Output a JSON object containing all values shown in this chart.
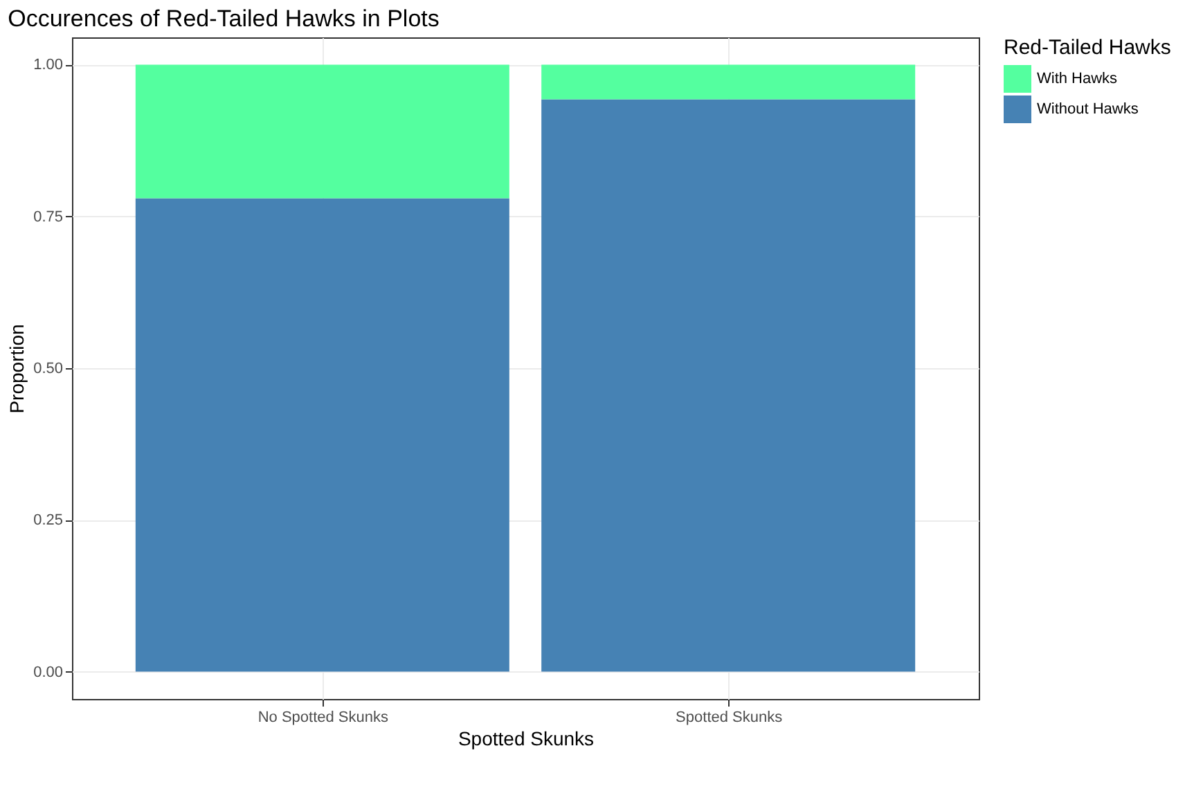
{
  "chart_data": {
    "type": "bar",
    "title": "Occurences of Red-Tailed Hawks in Plots",
    "xlabel": "Spotted Skunks",
    "ylabel": "Proportion",
    "legend_title": "Red-Tailed Hawks",
    "categories": [
      "No Spotted Skunks",
      "Spotted Skunks"
    ],
    "series": [
      {
        "name": "Without Hawks",
        "color": "#4682b4",
        "values": [
          0.78,
          0.943
        ]
      },
      {
        "name": "With Hawks",
        "color": "#54ff9f",
        "values": [
          0.22,
          0.057
        ]
      }
    ],
    "stacked": true,
    "ylim": [
      -0.045,
      1.045
    ],
    "yticks": [
      {
        "value": 0,
        "label": "0.00"
      },
      {
        "value": 0.25,
        "label": "0.25"
      },
      {
        "value": 0.5,
        "label": "0.50"
      },
      {
        "value": 0.75,
        "label": "0.75"
      },
      {
        "value": 1,
        "label": "1.00"
      }
    ],
    "grid": true,
    "legend": "right"
  }
}
